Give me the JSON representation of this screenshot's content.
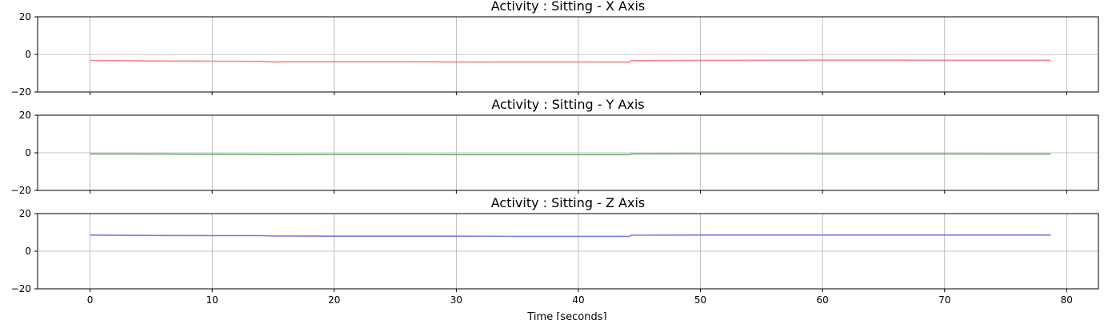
{
  "chart_data": {
    "type": "line",
    "grid": true,
    "sharex": true,
    "xlabel": "Time [seconds]",
    "xlim": [
      -4.3,
      82.6
    ],
    "xticks": [
      0,
      10,
      20,
      30,
      40,
      50,
      60,
      70,
      80
    ],
    "xtick_labels": [
      "0",
      "10",
      "20",
      "30",
      "40",
      "50",
      "60",
      "70",
      "80"
    ],
    "panels": [
      {
        "title": "Activity : Sitting - X Axis",
        "ylim": [
          -20,
          20
        ],
        "yticks": [
          20,
          0,
          -20
        ],
        "ytick_labels": [
          "20",
          "0",
          "−20"
        ],
        "color": "#ff6b6b",
        "x": [
          0,
          5,
          10,
          14,
          15,
          17,
          20,
          25,
          30,
          32,
          35,
          40,
          44.2,
          44.3,
          50,
          55,
          60,
          65,
          70,
          75,
          78.7
        ],
        "y": [
          -3.2,
          -3.5,
          -3.6,
          -3.7,
          -4.0,
          -3.9,
          -3.9,
          -3.9,
          -4.0,
          -4.1,
          -4.0,
          -4.0,
          -4.1,
          -3.3,
          -3.2,
          -3.1,
          -3.0,
          -3.0,
          -3.1,
          -3.1,
          -3.1
        ]
      },
      {
        "title": "Activity : Sitting - Y Axis",
        "ylim": [
          -20,
          20
        ],
        "yticks": [
          20,
          0,
          -20
        ],
        "ytick_labels": [
          "20",
          "0",
          "−20"
        ],
        "color": "#5aa35a",
        "x": [
          0,
          5,
          10,
          14,
          15,
          20,
          25,
          30,
          35,
          40,
          44.2,
          44.3,
          50,
          55,
          60,
          65,
          70,
          75,
          78.7
        ],
        "y": [
          -0.6,
          -0.7,
          -0.8,
          -0.9,
          -1.0,
          -0.9,
          -0.9,
          -1.0,
          -1.0,
          -1.0,
          -1.0,
          -0.6,
          -0.5,
          -0.5,
          -0.6,
          -0.6,
          -0.6,
          -0.7,
          -0.7
        ]
      },
      {
        "title": "Activity : Sitting - Z Axis",
        "ylim": [
          -20,
          20
        ],
        "yticks": [
          20,
          0,
          -20
        ],
        "ytick_labels": [
          "20",
          "0",
          "−20"
        ],
        "color": "#6464e6",
        "x": [
          0,
          5,
          10,
          14,
          15,
          20,
          25,
          30,
          35,
          40,
          44.2,
          44.3,
          50,
          55,
          60,
          65,
          70,
          75,
          78.7
        ],
        "y": [
          8.6,
          8.4,
          8.3,
          8.3,
          8.1,
          8.0,
          8.0,
          8.0,
          7.9,
          7.9,
          7.9,
          8.5,
          8.6,
          8.6,
          8.6,
          8.6,
          8.6,
          8.6,
          8.6
        ]
      }
    ]
  }
}
